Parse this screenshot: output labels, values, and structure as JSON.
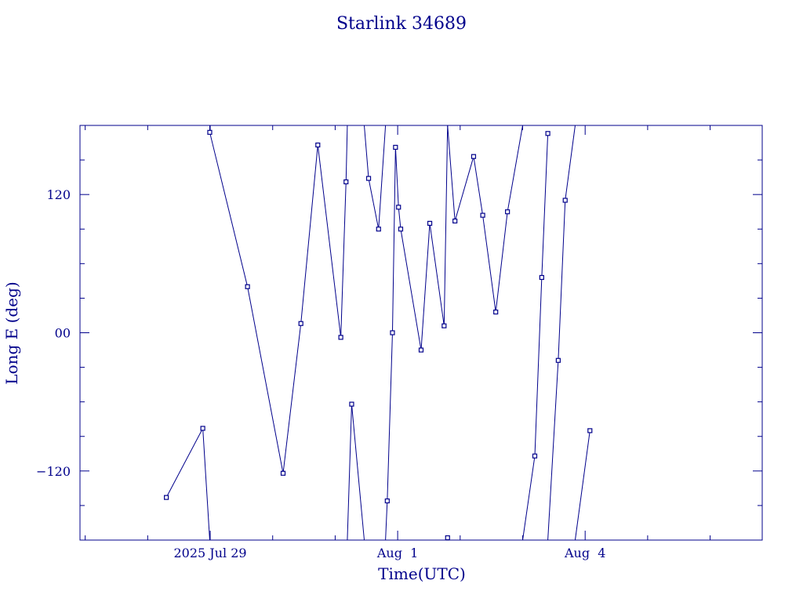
{
  "chart_data": {
    "type": "line",
    "title": "Starlink 34689",
    "xlabel": "Time(UTC)",
    "ylabel": "Long E (deg)",
    "x_ticks": [
      {
        "x": "2025-07-29",
        "label": "2025 Jul 29"
      },
      {
        "x": "2025-08-01",
        "label": "Aug  1"
      },
      {
        "x": "2025-08-04",
        "label": "Aug  4"
      }
    ],
    "y_ticks": [
      {
        "y": -120,
        "label": "−120"
      },
      {
        "y": 0,
        "label": "00"
      },
      {
        "y": 120,
        "label": "120"
      }
    ],
    "xlim": [
      "2025-07-26T22:00",
      "2025-08-06T20:00"
    ],
    "ylim": [
      -180,
      180
    ],
    "grid": false,
    "color": "#00008b",
    "points": [
      {
        "x": "2025-07-28T07:10",
        "y": -143
      },
      {
        "x": "2025-07-28T21:10",
        "y": -83
      },
      {
        "x": "2025-07-28T23:50",
        "y": -180,
        "marker": false
      },
      {
        "x": "2025-07-28T23:50",
        "y": 180,
        "marker": false,
        "break_before": true
      },
      {
        "x": "2025-07-28T23:50",
        "y": 174
      },
      {
        "x": "2025-07-29T14:20",
        "y": 40
      },
      {
        "x": "2025-07-30T04:00",
        "y": -122
      },
      {
        "x": "2025-07-30T10:50",
        "y": 8
      },
      {
        "x": "2025-07-30T17:20",
        "y": 163
      },
      {
        "x": "2025-07-31T02:10",
        "y": -4
      },
      {
        "x": "2025-07-31T04:10",
        "y": 131
      },
      {
        "x": "2025-07-31T04:40",
        "y": 180,
        "marker": false
      },
      {
        "x": "2025-07-31T04:40",
        "y": -180,
        "marker": false,
        "break_before": true
      },
      {
        "x": "2025-07-31T06:20",
        "y": -62
      },
      {
        "x": "2025-07-31T11:10",
        "y": -180,
        "marker": false
      },
      {
        "x": "2025-07-31T11:10",
        "y": 180,
        "marker": false,
        "break_before": true
      },
      {
        "x": "2025-07-31T12:50",
        "y": 134
      },
      {
        "x": "2025-07-31T16:40",
        "y": 90
      },
      {
        "x": "2025-07-31T19:20",
        "y": 180,
        "marker": false
      },
      {
        "x": "2025-07-31T19:20",
        "y": -180,
        "marker": false,
        "break_before": true
      },
      {
        "x": "2025-07-31T20:00",
        "y": -146
      },
      {
        "x": "2025-07-31T22:00",
        "y": 0
      },
      {
        "x": "2025-07-31T23:10",
        "y": 161
      },
      {
        "x": "2025-08-01T00:20",
        "y": 109
      },
      {
        "x": "2025-08-01T01:10",
        "y": 90
      },
      {
        "x": "2025-08-01T09:00",
        "y": -15
      },
      {
        "x": "2025-08-01T12:20",
        "y": 95
      },
      {
        "x": "2025-08-01T17:50",
        "y": 6
      },
      {
        "x": "2025-08-01T19:10",
        "y": 180,
        "marker": false
      },
      {
        "x": "2025-08-01T19:10",
        "y": -180,
        "marker": false,
        "break_before": true
      },
      {
        "x": "2025-08-01T19:10",
        "y": -178
      },
      {
        "x": "2025-08-01T19:10",
        "y": 180,
        "marker": false,
        "break_before": true
      },
      {
        "x": "2025-08-01T22:00",
        "y": 97
      },
      {
        "x": "2025-08-02T05:10",
        "y": 153
      },
      {
        "x": "2025-08-02T08:40",
        "y": 102
      },
      {
        "x": "2025-08-02T13:40",
        "y": 18
      },
      {
        "x": "2025-08-02T18:10",
        "y": 105
      },
      {
        "x": "2025-08-03T00:00",
        "y": 180,
        "marker": false
      },
      {
        "x": "2025-08-03T00:00",
        "y": -180,
        "marker": false,
        "break_before": true
      },
      {
        "x": "2025-08-03T04:40",
        "y": -107
      },
      {
        "x": "2025-08-03T07:20",
        "y": 48
      },
      {
        "x": "2025-08-03T09:40",
        "y": 173
      },
      {
        "x": "2025-08-03T09:40",
        "y": -180,
        "marker": false,
        "break_before": true
      },
      {
        "x": "2025-08-03T13:40",
        "y": -24
      },
      {
        "x": "2025-08-03T16:20",
        "y": 115
      },
      {
        "x": "2025-08-03T20:10",
        "y": 180,
        "marker": false
      },
      {
        "x": "2025-08-03T20:10",
        "y": -180,
        "marker": false,
        "break_before": true
      },
      {
        "x": "2025-08-04T01:50",
        "y": -85
      }
    ]
  }
}
